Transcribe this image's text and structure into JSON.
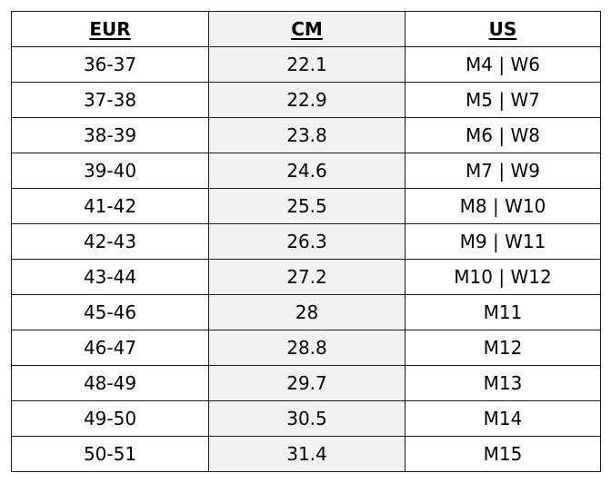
{
  "table": {
    "headers": [
      "EUR",
      "CM",
      "US"
    ],
    "rows": [
      [
        "36-37",
        "22.1",
        "M4 | W6"
      ],
      [
        "37-38",
        "22.9",
        "M5 | W7"
      ],
      [
        "38-39",
        "23.8",
        "M6 | W8"
      ],
      [
        "39-40",
        "24.6",
        "M7 | W9"
      ],
      [
        "41-42",
        "25.5",
        "M8 | W10"
      ],
      [
        "42-43",
        "26.3",
        "M9 | W11"
      ],
      [
        "43-44",
        "27.2",
        "M10 | W12"
      ],
      [
        "45-46",
        "28",
        "M11"
      ],
      [
        "46-47",
        "28.8",
        "M12"
      ],
      [
        "48-49",
        "29.7",
        "M13"
      ],
      [
        "49-50",
        "30.5",
        "M14"
      ],
      [
        "50-51",
        "31.4",
        "M15"
      ]
    ]
  },
  "colors": {
    "border": "#1a1a1a",
    "cm_column_shade": "#f2f2f2",
    "text": "#000000"
  }
}
